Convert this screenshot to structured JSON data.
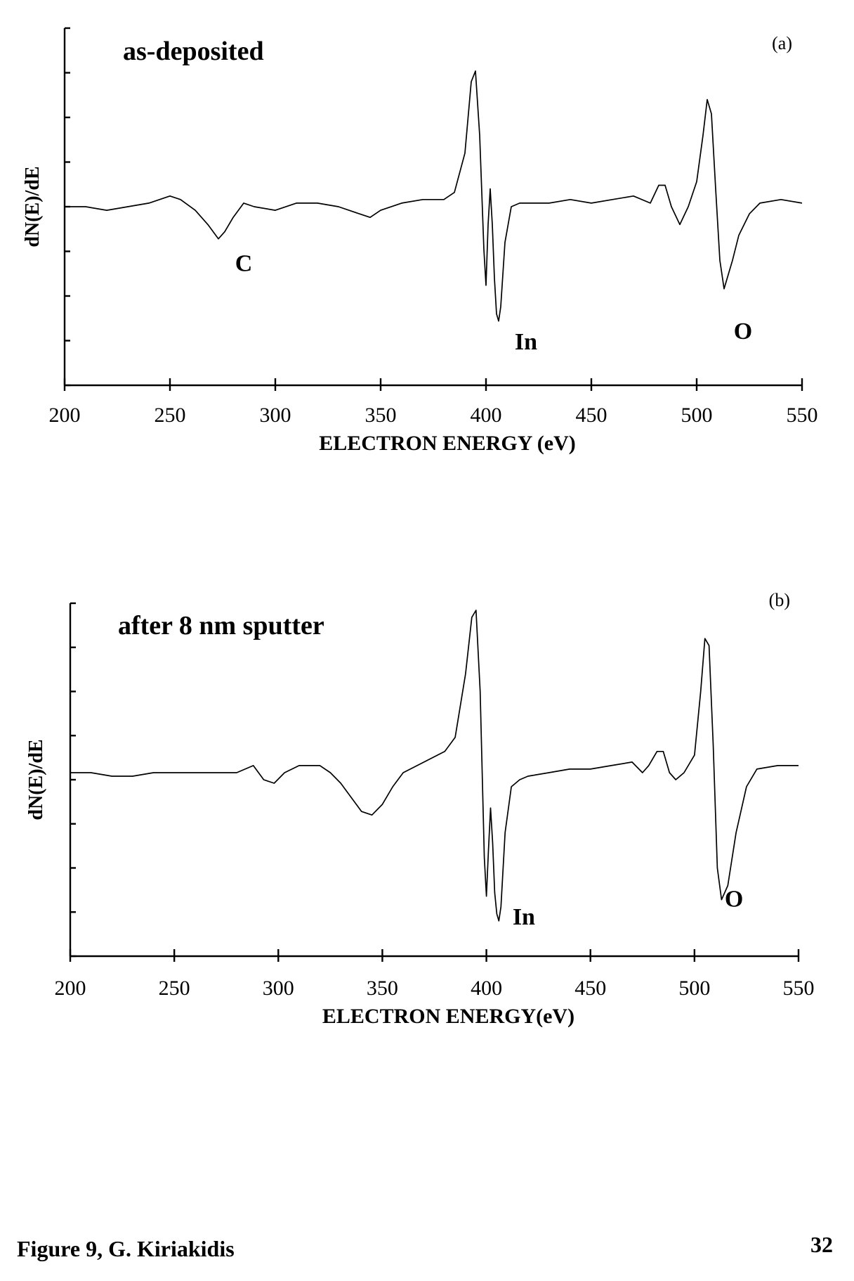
{
  "footer": {
    "caption": "Figure 9, G. Kiriakidis",
    "page_number": "32"
  },
  "chart_data": [
    {
      "type": "line",
      "panel": "(a)",
      "title": "as-deposited",
      "xlabel": "ELECTRON ENERGY (eV)",
      "ylabel": "dN(E)/dE",
      "xlim": [
        200,
        550
      ],
      "xticks": [
        200,
        250,
        300,
        350,
        400,
        450,
        500,
        550
      ],
      "ylim": [
        0,
        100
      ],
      "y_minor_ticks": 8,
      "grid": false,
      "annotations": [
        {
          "text": "C",
          "x": 285,
          "y": 32
        },
        {
          "text": "In",
          "x": 419,
          "y": 10
        },
        {
          "text": "O",
          "x": 522,
          "y": 13
        }
      ],
      "series": [
        {
          "x": [
            200,
            210,
            220,
            230,
            240,
            250,
            255,
            262,
            268,
            273,
            276,
            280,
            285,
            290,
            300,
            310,
            320,
            330,
            340,
            345,
            350,
            360,
            370,
            380,
            385,
            390,
            393,
            395,
            397,
            399,
            400,
            401,
            402,
            403,
            404,
            405,
            406,
            407,
            409,
            412,
            416,
            420,
            430,
            440,
            450,
            460,
            470,
            478,
            482,
            485,
            488,
            492,
            496,
            500,
            503,
            505,
            507,
            509,
            511,
            513,
            517,
            520,
            525,
            530,
            540,
            550
          ],
          "y": [
            50,
            50,
            49,
            50,
            51,
            53,
            52,
            49,
            45,
            41,
            43,
            47,
            51,
            50,
            49,
            51,
            51,
            50,
            48,
            47,
            49,
            51,
            52,
            52,
            54,
            65,
            85,
            88,
            70,
            38,
            28,
            45,
            55,
            45,
            30,
            20,
            18,
            22,
            40,
            50,
            51,
            51,
            51,
            52,
            51,
            52,
            53,
            51,
            56,
            56,
            50,
            45,
            50,
            57,
            70,
            80,
            76,
            55,
            35,
            27,
            35,
            42,
            48,
            51,
            52,
            51
          ]
        }
      ]
    },
    {
      "type": "line",
      "panel": "(b)",
      "title": "after 8 nm sputter",
      "xlabel": "ELECTRON ENERGY(eV)",
      "ylabel": "dN(E)/dE",
      "xlim": [
        200,
        550
      ],
      "xticks": [
        200,
        250,
        300,
        350,
        400,
        450,
        500,
        550
      ],
      "ylim": [
        0,
        100
      ],
      "y_minor_ticks": 8,
      "grid": false,
      "annotations": [
        {
          "text": "In",
          "x": 418,
          "y": 9
        },
        {
          "text": "O",
          "x": 519,
          "y": 14
        }
      ],
      "series": [
        {
          "x": [
            200,
            210,
            220,
            230,
            240,
            250,
            260,
            270,
            280,
            288,
            293,
            298,
            303,
            310,
            320,
            325,
            330,
            335,
            340,
            345,
            350,
            355,
            360,
            370,
            380,
            385,
            390,
            393,
            395,
            397,
            399,
            400,
            401,
            402,
            403,
            404,
            405,
            406,
            407,
            409,
            412,
            416,
            420,
            430,
            440,
            450,
            460,
            470,
            475,
            478,
            482,
            485,
            488,
            491,
            495,
            500,
            503,
            505,
            507,
            509,
            511,
            513,
            516,
            520,
            525,
            530,
            540,
            550
          ],
          "y": [
            52,
            52,
            51,
            51,
            52,
            52,
            52,
            52,
            52,
            54,
            50,
            49,
            52,
            54,
            54,
            52,
            49,
            45,
            41,
            40,
            43,
            48,
            52,
            55,
            58,
            62,
            80,
            96,
            98,
            75,
            28,
            17,
            30,
            42,
            32,
            18,
            12,
            10,
            14,
            35,
            48,
            50,
            51,
            52,
            53,
            53,
            54,
            55,
            52,
            54,
            58,
            58,
            52,
            50,
            52,
            57,
            75,
            90,
            88,
            60,
            25,
            16,
            20,
            35,
            48,
            53,
            54,
            54
          ]
        }
      ]
    }
  ]
}
